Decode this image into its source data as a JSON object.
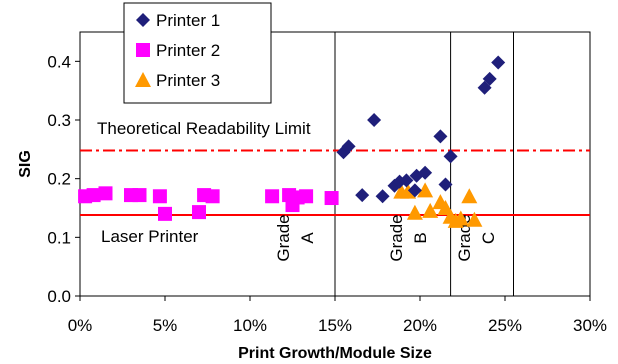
{
  "chart_data": {
    "type": "scatter",
    "xlabel": "Print Growth/Module Size",
    "ylabel": "SIG",
    "xlim": [
      0,
      30
    ],
    "ylim": [
      0,
      0.45
    ],
    "x_ticks": [
      "0%",
      "5%",
      "10%",
      "15%",
      "20%",
      "25%",
      "30%"
    ],
    "y_ticks": [
      "0.0",
      "0.1",
      "0.2",
      "0.3",
      "0.4"
    ],
    "grid": false,
    "legend_position": "top-left",
    "series": [
      {
        "name": "Printer 1",
        "marker": "diamond",
        "color": "#1f1f7a",
        "points": [
          [
            15.5,
            0.245
          ],
          [
            15.8,
            0.255
          ],
          [
            16.6,
            0.172
          ],
          [
            17.3,
            0.3
          ],
          [
            17.8,
            0.17
          ],
          [
            18.5,
            0.188
          ],
          [
            18.8,
            0.195
          ],
          [
            19.2,
            0.197
          ],
          [
            19.7,
            0.18
          ],
          [
            19.8,
            0.205
          ],
          [
            20.3,
            0.21
          ],
          [
            21.2,
            0.272
          ],
          [
            21.5,
            0.19
          ],
          [
            21.8,
            0.238
          ],
          [
            23.8,
            0.355
          ],
          [
            24.1,
            0.37
          ],
          [
            24.6,
            0.398
          ]
        ]
      },
      {
        "name": "Printer 2",
        "marker": "square",
        "color": "#ff00ff",
        "points": [
          [
            0.3,
            0.17
          ],
          [
            0.8,
            0.172
          ],
          [
            1.5,
            0.175
          ],
          [
            3.0,
            0.172
          ],
          [
            3.5,
            0.172
          ],
          [
            4.7,
            0.17
          ],
          [
            5.0,
            0.14
          ],
          [
            7.0,
            0.143
          ],
          [
            7.3,
            0.172
          ],
          [
            7.8,
            0.17
          ],
          [
            11.3,
            0.17
          ],
          [
            12.3,
            0.172
          ],
          [
            12.5,
            0.155
          ],
          [
            12.8,
            0.168
          ],
          [
            13.3,
            0.17
          ],
          [
            14.8,
            0.167
          ]
        ]
      },
      {
        "name": "Printer 3",
        "marker": "triangle",
        "color": "#ff9900",
        "points": [
          [
            18.9,
            0.178
          ],
          [
            19.3,
            0.178
          ],
          [
            19.7,
            0.142
          ],
          [
            20.3,
            0.18
          ],
          [
            20.6,
            0.145
          ],
          [
            21.2,
            0.16
          ],
          [
            21.5,
            0.15
          ],
          [
            21.8,
            0.135
          ],
          [
            22.1,
            0.128
          ],
          [
            22.4,
            0.132
          ],
          [
            22.9,
            0.17
          ],
          [
            23.2,
            0.13
          ]
        ]
      }
    ],
    "vertical_lines": [
      15,
      21.8,
      25.5
    ],
    "horizontal_lines": [
      {
        "y": 0.248,
        "style": "dash-dot",
        "color": "#ff0000",
        "label": "Theoretical Readability Limit"
      },
      {
        "y": 0.138,
        "style": "solid",
        "color": "#ff0000",
        "label": "Laser Printer"
      }
    ],
    "region_labels": [
      {
        "line1": "Grade",
        "line2": "A"
      },
      {
        "line1": "Grade",
        "line2": "B"
      },
      {
        "line1": "Grade",
        "line2": "C"
      }
    ]
  }
}
